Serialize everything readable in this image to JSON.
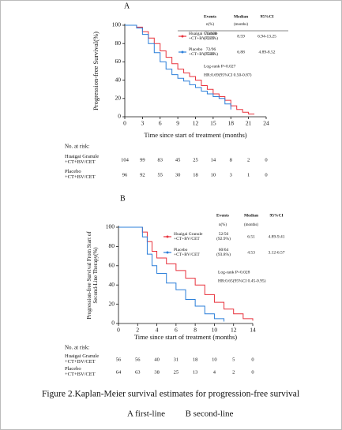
{
  "chart_data": [
    {
      "type": "line",
      "step": true,
      "panel": "A",
      "xlabel": "Time since start of treatment (months)",
      "ylabel": "Progression-free Survival(%)",
      "xlim": [
        0,
        24
      ],
      "xticks": [
        0,
        3,
        6,
        9,
        12,
        15,
        18,
        21,
        24
      ],
      "ylim": [
        0,
        100
      ],
      "yticks": [
        0,
        20,
        40,
        60,
        80,
        100
      ],
      "stats_header": [
        "Events",
        "Median",
        "95%CI"
      ],
      "stats_subheader": [
        "n(%)",
        "(months)"
      ],
      "annotations": [
        "Log-rank P=0.027",
        "HR:0.69(95%CI 0.50-0.87)"
      ],
      "risk_title": "No. at risk:",
      "series": [
        {
          "name": "Huaigai Granule +CT+BV/CET",
          "color": "#e8323c",
          "events": "75/104 (72.1%)",
          "median": "8.59",
          "ci": "6.94-13.25",
          "x": [
            0,
            1.5,
            2,
            3,
            4,
            5,
            6,
            7,
            8,
            9,
            10,
            11,
            12,
            13,
            14,
            15,
            16,
            17,
            18,
            19,
            20,
            21,
            22
          ],
          "values": [
            100,
            100,
            98,
            93,
            86,
            80,
            72,
            65,
            58,
            52,
            48,
            44,
            40,
            34,
            30,
            25,
            22,
            18,
            12,
            8,
            5,
            3,
            3
          ],
          "at_risk": [
            "104",
            "99",
            "83",
            "45",
            "25",
            "14",
            "8",
            "2",
            "0"
          ]
        },
        {
          "name": "Placebo +CT+BV/CET",
          "color": "#2b7fd9",
          "events": "72/96 (75.0%)",
          "median": "6.88",
          "ci": "4.89-8.52",
          "x": [
            0,
            1.5,
            2,
            3,
            4,
            5,
            6,
            7,
            8,
            9,
            10,
            11,
            12,
            13,
            14,
            15,
            16,
            17,
            18
          ],
          "values": [
            100,
            100,
            97,
            90,
            80,
            70,
            60,
            52,
            46,
            42,
            39,
            35,
            32,
            28,
            25,
            22,
            20,
            14,
            8
          ],
          "at_risk": [
            "96",
            "92",
            "55",
            "30",
            "18",
            "10",
            "3",
            "1",
            "0"
          ]
        }
      ]
    },
    {
      "type": "line",
      "step": true,
      "panel": "B",
      "xlabel": "Time since start of treatment (months)",
      "ylabel": "Progression-free Survival From Start of Second-Line Therapy(%)",
      "xlim": [
        0,
        14
      ],
      "xticks": [
        0,
        2,
        4,
        6,
        8,
        10,
        12,
        14
      ],
      "ylim": [
        0,
        100
      ],
      "yticks": [
        0,
        20,
        40,
        60,
        80,
        100
      ],
      "stats_header": [
        "Events",
        "Median",
        "95%CI"
      ],
      "stats_subheader": [
        "n(%)",
        "(months)"
      ],
      "annotations": [
        "Log-rank P=0.028",
        "HR:0.65(95%CI 0.45-0.95)"
      ],
      "risk_title": "No. at risk:",
      "series": [
        {
          "name": "Huaigai Granule +CT+BV/CET",
          "color": "#e8323c",
          "events": "52/56 (92.9%)",
          "median": "6.51",
          "ci": "4.89-9.41",
          "x": [
            0,
            2,
            2.5,
            3,
            3.5,
            4,
            5,
            6,
            7,
            8,
            9,
            10,
            11,
            12,
            13,
            14
          ],
          "values": [
            100,
            100,
            95,
            85,
            75,
            68,
            62,
            55,
            47,
            40,
            30,
            22,
            15,
            10,
            5,
            3
          ],
          "at_risk": [
            "56",
            "56",
            "40",
            "31",
            "18",
            "10",
            "5",
            "0"
          ]
        },
        {
          "name": "Placebo +CT+BV/CET",
          "color": "#2b7fd9",
          "events": "60/64 (93.8%)",
          "median": "4.53",
          "ci": "3.12-6.57",
          "x": [
            0,
            2,
            2.5,
            3,
            3.5,
            4,
            5,
            6,
            7,
            8,
            9,
            10,
            11
          ],
          "values": [
            100,
            100,
            90,
            72,
            60,
            52,
            42,
            35,
            25,
            18,
            10,
            5,
            2
          ],
          "at_risk": [
            "64",
            "63",
            "38",
            "25",
            "13",
            "4",
            "2",
            "0"
          ]
        }
      ]
    }
  ],
  "caption": {
    "title": "Figure 2.Kaplan-Meier survival estimates for progression-free survival",
    "panels": [
      "A first-line",
      "B second-line"
    ]
  }
}
